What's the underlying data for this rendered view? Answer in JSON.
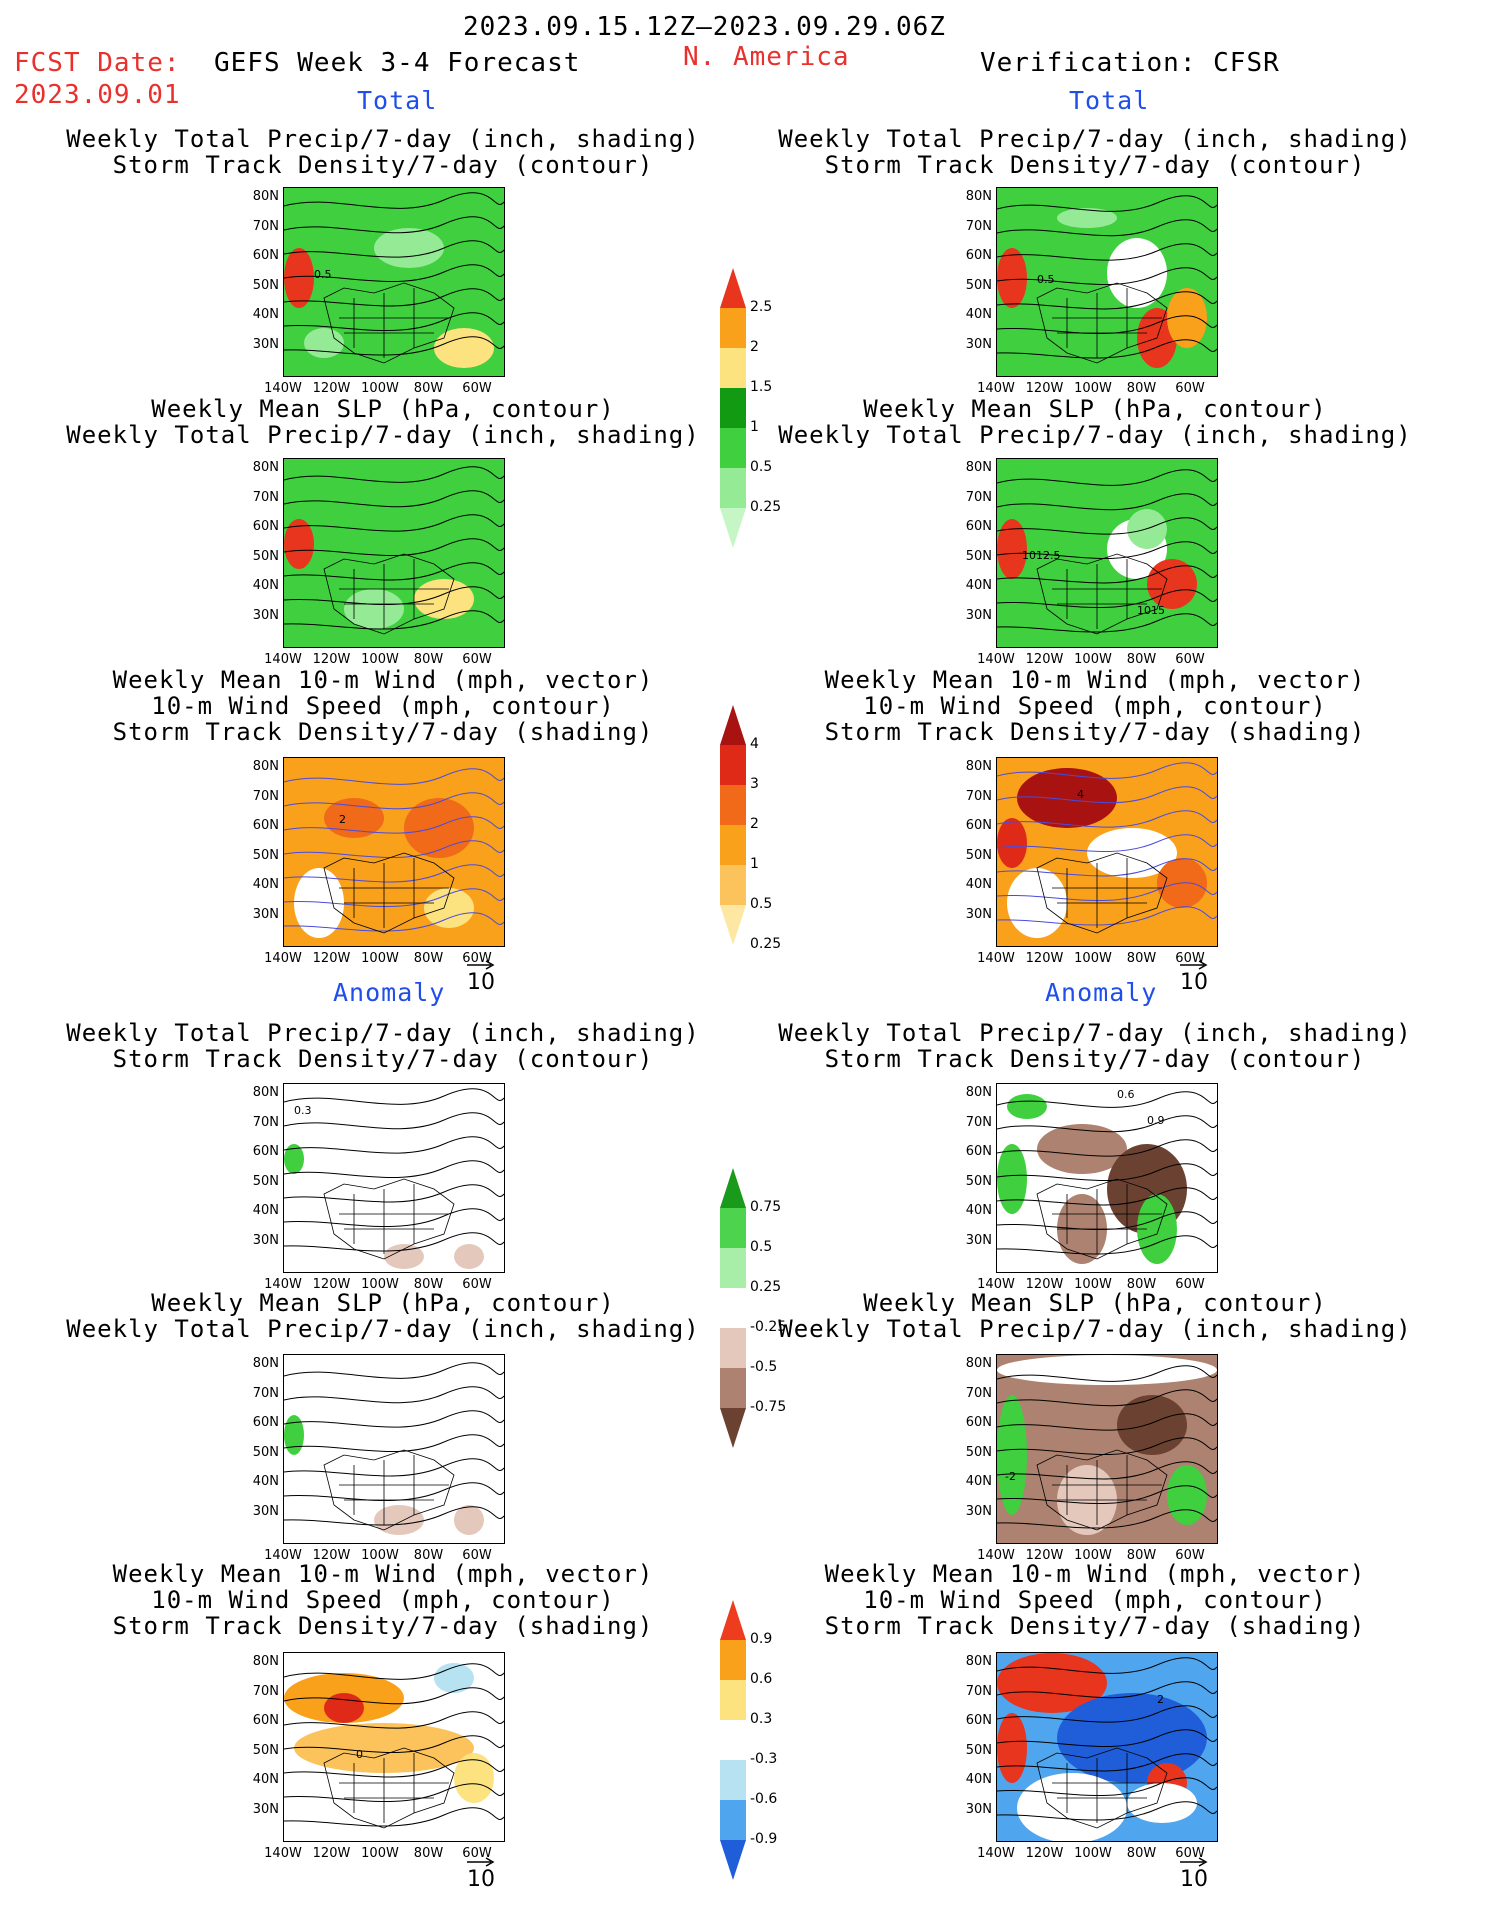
{
  "header": {
    "date_range": "2023.09.15.12Z–2023.09.29.06Z",
    "fcst_label": "FCST Date:",
    "fcst_date": "2023.09.01",
    "model_title": "GEFS Week 3-4 Forecast",
    "region": "N. America",
    "verification": "Verification: CFSR"
  },
  "sections": {
    "total_left": "Total",
    "total_right": "Total",
    "anomaly_left": "Anomaly",
    "anomaly_right": "Anomaly"
  },
  "titles": {
    "precip_storm": [
      "Weekly Total Precip/7-day (inch, shading)",
      "Storm Track Density/7-day (contour)"
    ],
    "slp_precip": [
      "Weekly Mean SLP (hPa, contour)",
      "Weekly Total Precip/7-day (inch, shading)"
    ],
    "wind": [
      "Weekly Mean 10-m Wind (mph, vector)",
      "10-m Wind Speed (mph, contour)",
      "Storm Track Density/7-day (shading)"
    ]
  },
  "axes": {
    "lat_labels": [
      "80N",
      "70N",
      "60N",
      "50N",
      "40N",
      "30N"
    ],
    "lon_labels": [
      "140W",
      "120W",
      "100W",
      "80W",
      "60W"
    ]
  },
  "map_labels": {
    "r1_left": "0.5",
    "r1_right": "0.5",
    "r2_right_a": "1012.5",
    "r2_right_b": "1015",
    "r3_left": "2",
    "r3_right": "4",
    "r4_left": "0.3",
    "r4_right_a": "0.6",
    "r4_right_b": "0.9",
    "r5_right": "-2",
    "r6_left": "0",
    "r6_right": "2"
  },
  "vector_ref": "10",
  "colorbars": {
    "precip": {
      "labels": [
        "2.5",
        "2",
        "1.5",
        "1",
        "0.5",
        "0.25"
      ],
      "colors": [
        "#e8351e",
        "#f9a11b",
        "#fde37f",
        "#139a13",
        "#3fcf3f",
        "#95ea95",
        "#c6f6c6"
      ]
    },
    "storm_total": {
      "labels": [
        "4",
        "3",
        "2",
        "1",
        "0.5",
        "0.25"
      ],
      "colors": [
        "#a81210",
        "#e02a18",
        "#f06a1a",
        "#f9a11b",
        "#fcc35c",
        "#fee7a3"
      ]
    },
    "precip_anom": {
      "labels": [
        "0.75",
        "0.5",
        "0.25",
        "-0.25",
        "-0.5",
        "-0.75"
      ],
      "colors": [
        "#1a9a1a",
        "#4ed34e",
        "#a8eda8",
        "#ffffff",
        "#e4c8bc",
        "#ad8270",
        "#6b4232"
      ]
    },
    "storm_anom": {
      "labels": [
        "0.9",
        "0.6",
        "0.3",
        "-0.3",
        "-0.6",
        "-0.9"
      ],
      "colors": [
        "#ee3c1f",
        "#f9a11b",
        "#fde37f",
        "#ffffff",
        "#b6e2f2",
        "#4fa6ef",
        "#1f5ed8"
      ]
    }
  }
}
